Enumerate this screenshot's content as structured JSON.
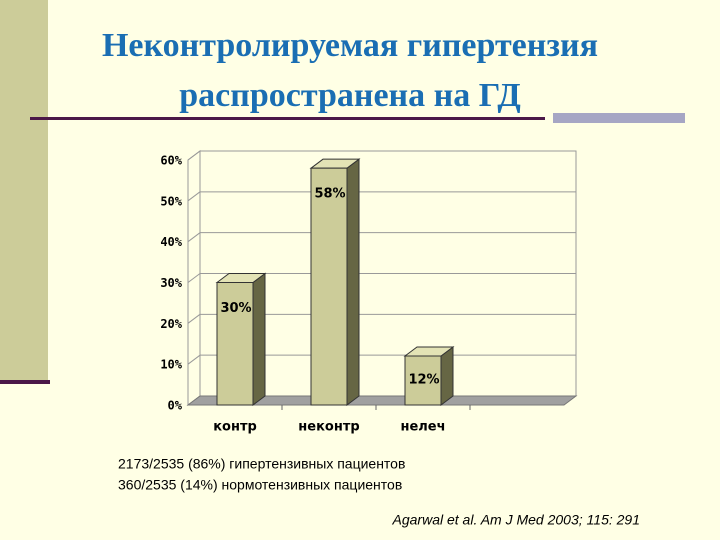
{
  "chart_data": {
    "type": "bar3d",
    "title_lines": [
      "Неконтролируемая гипертензия",
      "распространена на ГД"
    ],
    "categories": [
      "контр",
      "неконтр",
      "нелеч"
    ],
    "values": [
      30,
      58,
      12
    ],
    "value_labels": [
      "30%",
      "58%",
      "12%"
    ],
    "color": "#cccc99",
    "ylim": [
      0,
      60
    ],
    "yticks": [
      {
        "value": 0,
        "label": "0%"
      },
      {
        "value": 10,
        "label": "10%"
      },
      {
        "value": 20,
        "label": "20%"
      },
      {
        "value": 30,
        "label": "30%"
      },
      {
        "value": 40,
        "label": "40%"
      },
      {
        "value": 50,
        "label": "50%"
      },
      {
        "value": 60,
        "label": "60%"
      }
    ],
    "grid": true,
    "notes": [
      "2173/2535  (86%) гипертензивных пациентов",
      "360/2535 (14%) нормотензивных пациентов"
    ],
    "citation": "Agarwal et al. Am J Med 2003; 115: 291"
  }
}
